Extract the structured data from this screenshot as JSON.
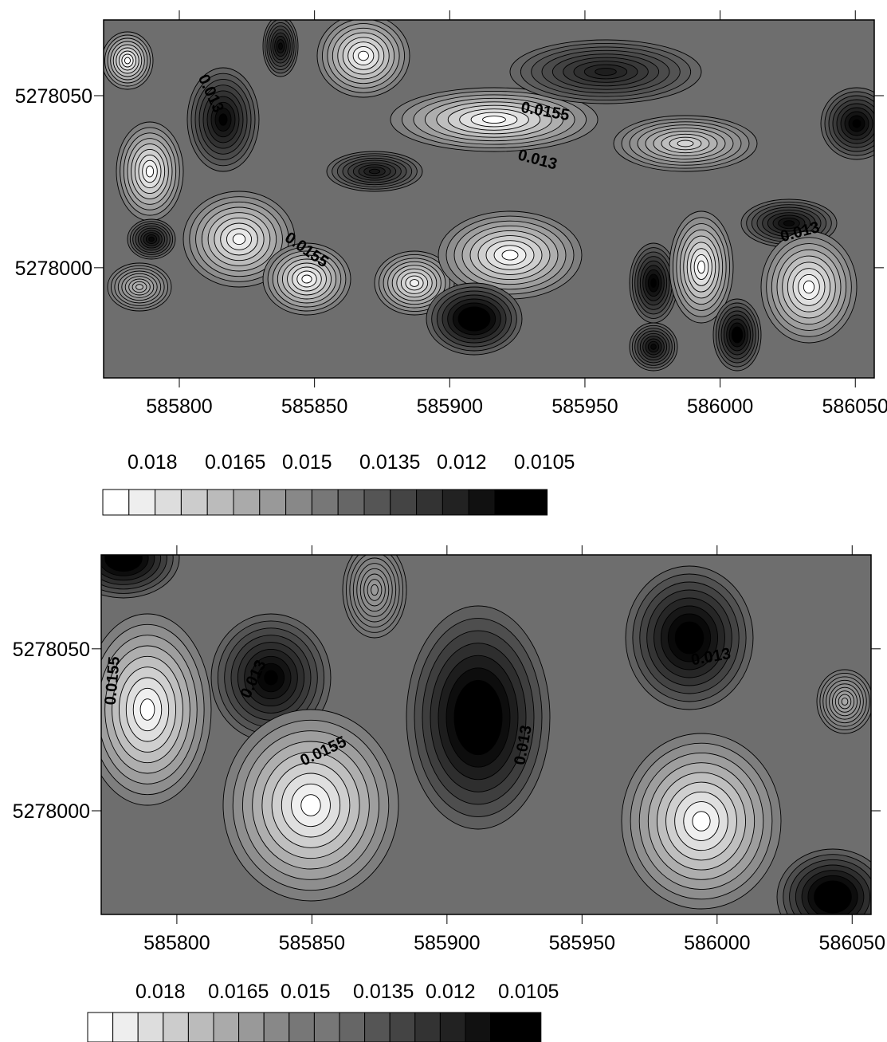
{
  "colors": {
    "legend_fills": [
      "#ffffff",
      "#eeeeee",
      "#dddddd",
      "#cccccc",
      "#bbbbbb",
      "#aaaaaa",
      "#999999",
      "#888888",
      "#777777",
      "#666666",
      "#555555",
      "#444444",
      "#333333",
      "#222222",
      "#111111",
      "#000000",
      "#000000"
    ],
    "background": "#6e6e6e",
    "line": "#000000"
  },
  "chart_data": [
    {
      "type": "contour",
      "title": "",
      "x_ticks": [
        585800,
        585850,
        585900,
        585950,
        586000,
        586050
      ],
      "x_tick_labels": [
        "585800",
        "585850",
        "585900",
        "585950",
        "586000",
        "586050"
      ],
      "y_ticks": [
        5278050,
        5278000
      ],
      "y_tick_labels": [
        "5278050",
        "5278000"
      ],
      "xlim": [
        585772,
        586057
      ],
      "ylim": [
        5277968,
        5278072
      ],
      "contour_labels": [
        {
          "text": "0.013",
          "x": 585810,
          "y": 5278050,
          "angle": 65
        },
        {
          "text": "0.0155",
          "x": 585935,
          "y": 5278044,
          "angle": 10
        },
        {
          "text": "0.013",
          "x": 585932,
          "y": 5278030,
          "angle": 15
        },
        {
          "text": "0.0155",
          "x": 585846,
          "y": 5278004,
          "angle": 35
        },
        {
          "text": "0.013",
          "x": 586030,
          "y": 5278009,
          "angle": -15
        }
      ],
      "legend": {
        "labels": [
          "0.018",
          "0.0165",
          "0.015",
          "0.0135",
          "0.012",
          "0.0105"
        ],
        "n_swatches": 17
      }
    },
    {
      "type": "contour",
      "title": "",
      "x_ticks": [
        585800,
        585850,
        585900,
        585950,
        586000,
        586050
      ],
      "x_tick_labels": [
        "585800",
        "585850",
        "585900",
        "585950",
        "586000",
        "586050"
      ],
      "y_ticks": [
        5278050,
        5278000
      ],
      "y_tick_labels": [
        "5278050",
        "5278000"
      ],
      "xlim": [
        585772,
        586057
      ],
      "ylim": [
        5277968,
        5278079
      ],
      "contour_labels": [
        {
          "text": "0.0155",
          "x": 585778,
          "y": 5278040,
          "angle": -85
        },
        {
          "text": "0.013",
          "x": 585830,
          "y": 5278040,
          "angle": -65
        },
        {
          "text": "0.0155",
          "x": 585855,
          "y": 5278017,
          "angle": -25
        },
        {
          "text": "0.013",
          "x": 585930,
          "y": 5278020,
          "angle": -80
        },
        {
          "text": "0.013",
          "x": 585998,
          "y": 5278046,
          "angle": -10
        }
      ],
      "legend": {
        "labels": [
          "0.018",
          "0.0165",
          "0.015",
          "0.0135",
          "0.012",
          "0.0105"
        ],
        "n_swatches": 18
      }
    }
  ]
}
